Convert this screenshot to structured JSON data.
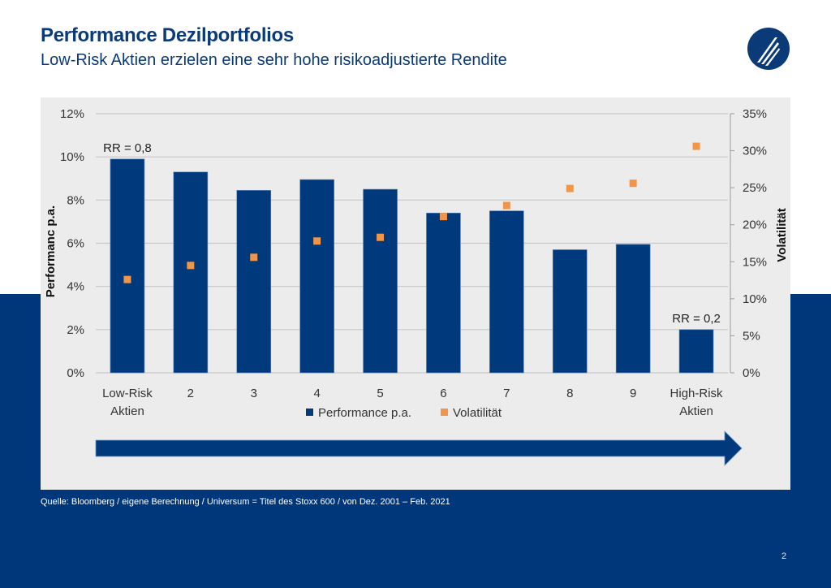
{
  "header": {
    "title": "Performance Dezilportfolios",
    "subtitle": "Low-Risk Aktien erzielen eine sehr hohe risikoadjustierte Rendite",
    "logo_icon": "company-logo-icon"
  },
  "colors": {
    "brand_blue": "#00377a",
    "bar_blue": "#003a7c",
    "volatility_orange": "#f0964a",
    "panel_gray": "#ececec"
  },
  "chart_data": {
    "type": "bar",
    "title": "",
    "categories": [
      "Low-Risk\nAktien",
      "2",
      "3",
      "4",
      "5",
      "6",
      "7",
      "8",
      "9",
      "High-Risk\nAktien"
    ],
    "category_lines": [
      [
        "Low-Risk",
        "Aktien"
      ],
      [
        "2"
      ],
      [
        "3"
      ],
      [
        "4"
      ],
      [
        "5"
      ],
      [
        "6"
      ],
      [
        "7"
      ],
      [
        "8"
      ],
      [
        "9"
      ],
      [
        "High-Risk",
        "Aktien"
      ]
    ],
    "series": [
      {
        "name": "Performance p.a.",
        "type": "bar",
        "axis": "left",
        "values": [
          9.9,
          9.3,
          8.45,
          8.95,
          8.5,
          7.4,
          7.5,
          5.7,
          5.95,
          2.0
        ]
      },
      {
        "name": "Volatilität",
        "type": "scatter",
        "axis": "right",
        "values": [
          12.6,
          14.5,
          15.6,
          17.8,
          18.3,
          21.1,
          22.6,
          24.9,
          25.6,
          30.6
        ]
      }
    ],
    "ylabel": "Performanc p.a.",
    "y2label": "Volatilität",
    "xlabel": "",
    "ylim": [
      0,
      12
    ],
    "y2lim": [
      0,
      35
    ],
    "yticks": [
      "0%",
      "2%",
      "4%",
      "6%",
      "8%",
      "10%",
      "12%"
    ],
    "ytick_values": [
      0,
      2,
      4,
      6,
      8,
      10,
      12
    ],
    "y2ticks": [
      "0%",
      "5%",
      "10%",
      "15%",
      "20%",
      "25%",
      "30%",
      "35%"
    ],
    "y2tick_values": [
      0,
      5,
      10,
      15,
      20,
      25,
      30,
      35
    ],
    "grid": true,
    "legend": {
      "position": "bottom",
      "entries": [
        "Performance p.a.",
        "Volatilität"
      ]
    },
    "annotations": [
      {
        "text": "RR = 0,8",
        "category_index": 0
      },
      {
        "text": "RR = 0,2",
        "category_index": 9
      }
    ],
    "arrow": "risk-direction-arrow (Low-Risk → High-Risk)"
  },
  "footer": {
    "source": "Quelle: Bloomberg / eigene Berechnung  / Universum = Titel des Stoxx 600 / von Dez. 2001 – Feb. 2021",
    "page_number": "2"
  }
}
